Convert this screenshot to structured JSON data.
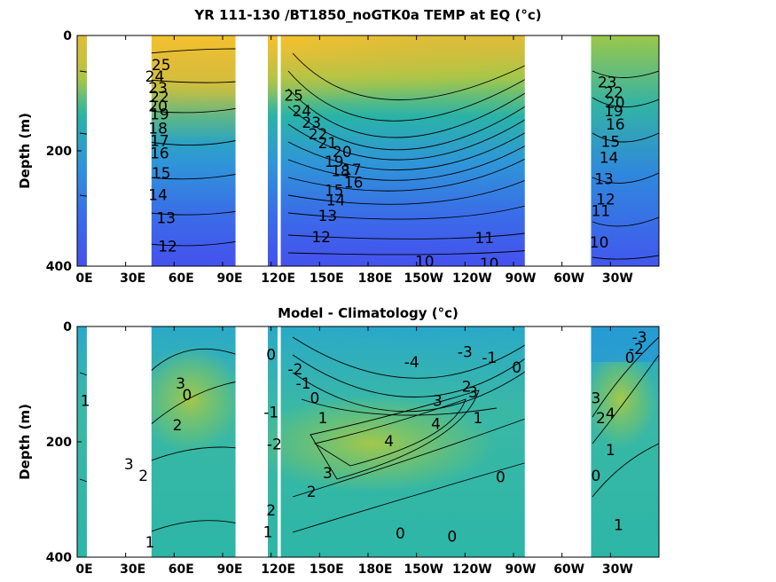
{
  "chart_data": [
    {
      "type": "heatmap",
      "title": "YR 111-130 /BT1850_noGTK0a TEMP at EQ (°c)",
      "xlabel": "",
      "ylabel": "Depth (m)",
      "xticks": [
        "0E",
        "30E",
        "60E",
        "90E",
        "120E",
        "150E",
        "180E",
        "150W",
        "120W",
        "90W",
        "60W",
        "30W"
      ],
      "xtick_lon": [
        0,
        30,
        60,
        90,
        120,
        150,
        180,
        210,
        240,
        270,
        300,
        330
      ],
      "xlim": [
        0,
        360
      ],
      "yticks": [
        "0",
        "200",
        "400"
      ],
      "ylim": [
        0,
        400
      ],
      "land_lon_ranges": [
        [
          6,
          46
        ],
        [
          98,
          118
        ],
        [
          124,
          126
        ],
        [
          277,
          318
        ]
      ],
      "contour_labels": [
        {
          "text": "25",
          "lon": 52,
          "depth": 52
        },
        {
          "text": "24",
          "lon": 48,
          "depth": 72
        },
        {
          "text": "23",
          "lon": 50,
          "depth": 92
        },
        {
          "text": "22",
          "lon": 51,
          "depth": 108
        },
        {
          "text": "20",
          "lon": 50,
          "depth": 124
        },
        {
          "text": "19",
          "lon": 51,
          "depth": 138
        },
        {
          "text": "18",
          "lon": 50,
          "depth": 162
        },
        {
          "text": "17",
          "lon": 51,
          "depth": 184
        },
        {
          "text": "16",
          "lon": 51,
          "depth": 205
        },
        {
          "text": "15",
          "lon": 52,
          "depth": 240
        },
        {
          "text": "14",
          "lon": 50,
          "depth": 278
        },
        {
          "text": "13",
          "lon": 55,
          "depth": 318
        },
        {
          "text": "12",
          "lon": 56,
          "depth": 367
        },
        {
          "text": "25",
          "lon": 134,
          "depth": 105
        },
        {
          "text": "24",
          "lon": 139,
          "depth": 132
        },
        {
          "text": "23",
          "lon": 145,
          "depth": 152
        },
        {
          "text": "22",
          "lon": 149,
          "depth": 172
        },
        {
          "text": "21",
          "lon": 155,
          "depth": 188
        },
        {
          "text": "20",
          "lon": 164,
          "depth": 203
        },
        {
          "text": "19",
          "lon": 159,
          "depth": 220
        },
        {
          "text": "18",
          "lon": 163,
          "depth": 236
        },
        {
          "text": "17",
          "lon": 170,
          "depth": 234
        },
        {
          "text": "16",
          "lon": 171,
          "depth": 256
        },
        {
          "text": "15",
          "lon": 159,
          "depth": 270
        },
        {
          "text": "14",
          "lon": 160,
          "depth": 287
        },
        {
          "text": "13",
          "lon": 155,
          "depth": 314
        },
        {
          "text": "12",
          "lon": 151,
          "depth": 351
        },
        {
          "text": "11",
          "lon": 252,
          "depth": 352
        },
        {
          "text": "10",
          "lon": 215,
          "depth": 393
        },
        {
          "text": "10",
          "lon": 255,
          "depth": 397
        },
        {
          "text": "23",
          "lon": 328,
          "depth": 82
        },
        {
          "text": "22",
          "lon": 332,
          "depth": 100
        },
        {
          "text": "20",
          "lon": 333,
          "depth": 118
        },
        {
          "text": "19",
          "lon": 332,
          "depth": 132
        },
        {
          "text": "16",
          "lon": 333,
          "depth": 155
        },
        {
          "text": "15",
          "lon": 330,
          "depth": 185
        },
        {
          "text": "14",
          "lon": 329,
          "depth": 213
        },
        {
          "text": "13",
          "lon": 326,
          "depth": 250
        },
        {
          "text": "12",
          "lon": 327,
          "depth": 285
        },
        {
          "text": "11",
          "lon": 324,
          "depth": 305
        },
        {
          "text": "10",
          "lon": 323,
          "depth": 360
        }
      ]
    },
    {
      "type": "heatmap",
      "title": "Model - Climatology (°c)",
      "xlabel": "",
      "ylabel": "Depth (m)",
      "xticks": [
        "0E",
        "30E",
        "60E",
        "90E",
        "120E",
        "150E",
        "180E",
        "150W",
        "120W",
        "90W",
        "60W",
        "30W"
      ],
      "xtick_lon": [
        0,
        30,
        60,
        90,
        120,
        150,
        180,
        210,
        240,
        270,
        300,
        330
      ],
      "xlim": [
        0,
        360
      ],
      "yticks": [
        "0",
        "200",
        "400"
      ],
      "ylim": [
        0,
        400
      ],
      "land_lon_ranges": [
        [
          6,
          46
        ],
        [
          98,
          118
        ],
        [
          124,
          126
        ],
        [
          277,
          318
        ]
      ],
      "contour_labels": [
        {
          "text": "1",
          "lon": 5,
          "depth": 130
        },
        {
          "text": "3",
          "lon": 32,
          "depth": 240
        },
        {
          "text": "2",
          "lon": 41,
          "depth": 260
        },
        {
          "text": "3",
          "lon": 64,
          "depth": 100
        },
        {
          "text": "2",
          "lon": 62,
          "depth": 172
        },
        {
          "text": "0",
          "lon": 68,
          "depth": 120
        },
        {
          "text": "1",
          "lon": 45,
          "depth": 375
        },
        {
          "text": "0",
          "lon": 120,
          "depth": 50
        },
        {
          "text": "-1",
          "lon": 120,
          "depth": 150
        },
        {
          "text": "-2",
          "lon": 122,
          "depth": 205
        },
        {
          "text": "1",
          "lon": 118,
          "depth": 358
        },
        {
          "text": "2",
          "lon": 120,
          "depth": 320
        },
        {
          "text": "-2",
          "lon": 135,
          "depth": 75
        },
        {
          "text": "-1",
          "lon": 140,
          "depth": 100
        },
        {
          "text": "0",
          "lon": 147,
          "depth": 125
        },
        {
          "text": "1",
          "lon": 152,
          "depth": 160
        },
        {
          "text": "3",
          "lon": 155,
          "depth": 255
        },
        {
          "text": "2",
          "lon": 145,
          "depth": 288
        },
        {
          "text": "-4",
          "lon": 207,
          "depth": 63
        },
        {
          "text": "-3",
          "lon": 240,
          "depth": 45
        },
        {
          "text": "-1",
          "lon": 255,
          "depth": 55
        },
        {
          "text": "0",
          "lon": 272,
          "depth": 72
        },
        {
          "text": "2",
          "lon": 241,
          "depth": 105
        },
        {
          "text": "3",
          "lon": 245,
          "depth": 115
        },
        {
          "text": "3",
          "lon": 223,
          "depth": 130
        },
        {
          "text": "4",
          "lon": 222,
          "depth": 170
        },
        {
          "text": "4",
          "lon": 193,
          "depth": 200
        },
        {
          "text": "1",
          "lon": 248,
          "depth": 160
        },
        {
          "text": "0",
          "lon": 262,
          "depth": 262
        },
        {
          "text": "0",
          "lon": 200,
          "depth": 360
        },
        {
          "text": "0",
          "lon": 232,
          "depth": 365
        },
        {
          "text": "-3",
          "lon": 348,
          "depth": 20
        },
        {
          "text": "-2",
          "lon": 346,
          "depth": 40
        },
        {
          "text": "0",
          "lon": 342,
          "depth": 55
        },
        {
          "text": "3",
          "lon": 321,
          "depth": 125
        },
        {
          "text": "2",
          "lon": 324,
          "depth": 160
        },
        {
          "text": "4",
          "lon": 330,
          "depth": 152
        },
        {
          "text": "1",
          "lon": 330,
          "depth": 215
        },
        {
          "text": "0",
          "lon": 321,
          "depth": 260
        },
        {
          "text": "1",
          "lon": 335,
          "depth": 345
        }
      ]
    }
  ]
}
